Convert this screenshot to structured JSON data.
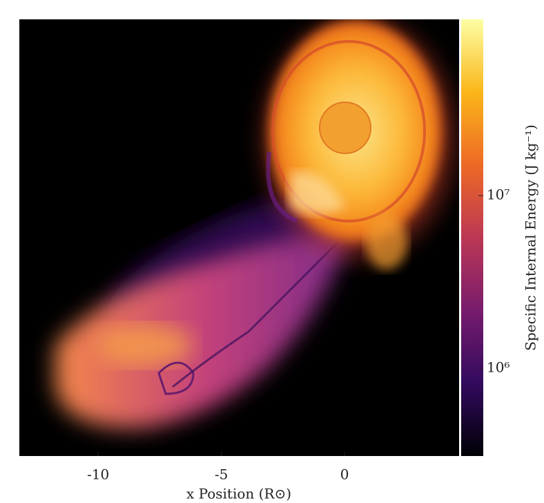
{
  "chart_data": {
    "type": "image",
    "xlabel": "x Position (R⊙)",
    "xlim": [
      -13.2,
      4.65
    ],
    "xticks": [
      -10,
      -5,
      0
    ],
    "colorbar": {
      "label": "Specific Internal Energy (J kg⁻¹)",
      "log": true,
      "colormap": "inferno",
      "lim": [
        310000,
        105000000
      ],
      "ticks": [
        {
          "value": 1000000,
          "label": "10⁶"
        },
        {
          "value": 10000000,
          "label": "10⁷"
        }
      ]
    }
  }
}
